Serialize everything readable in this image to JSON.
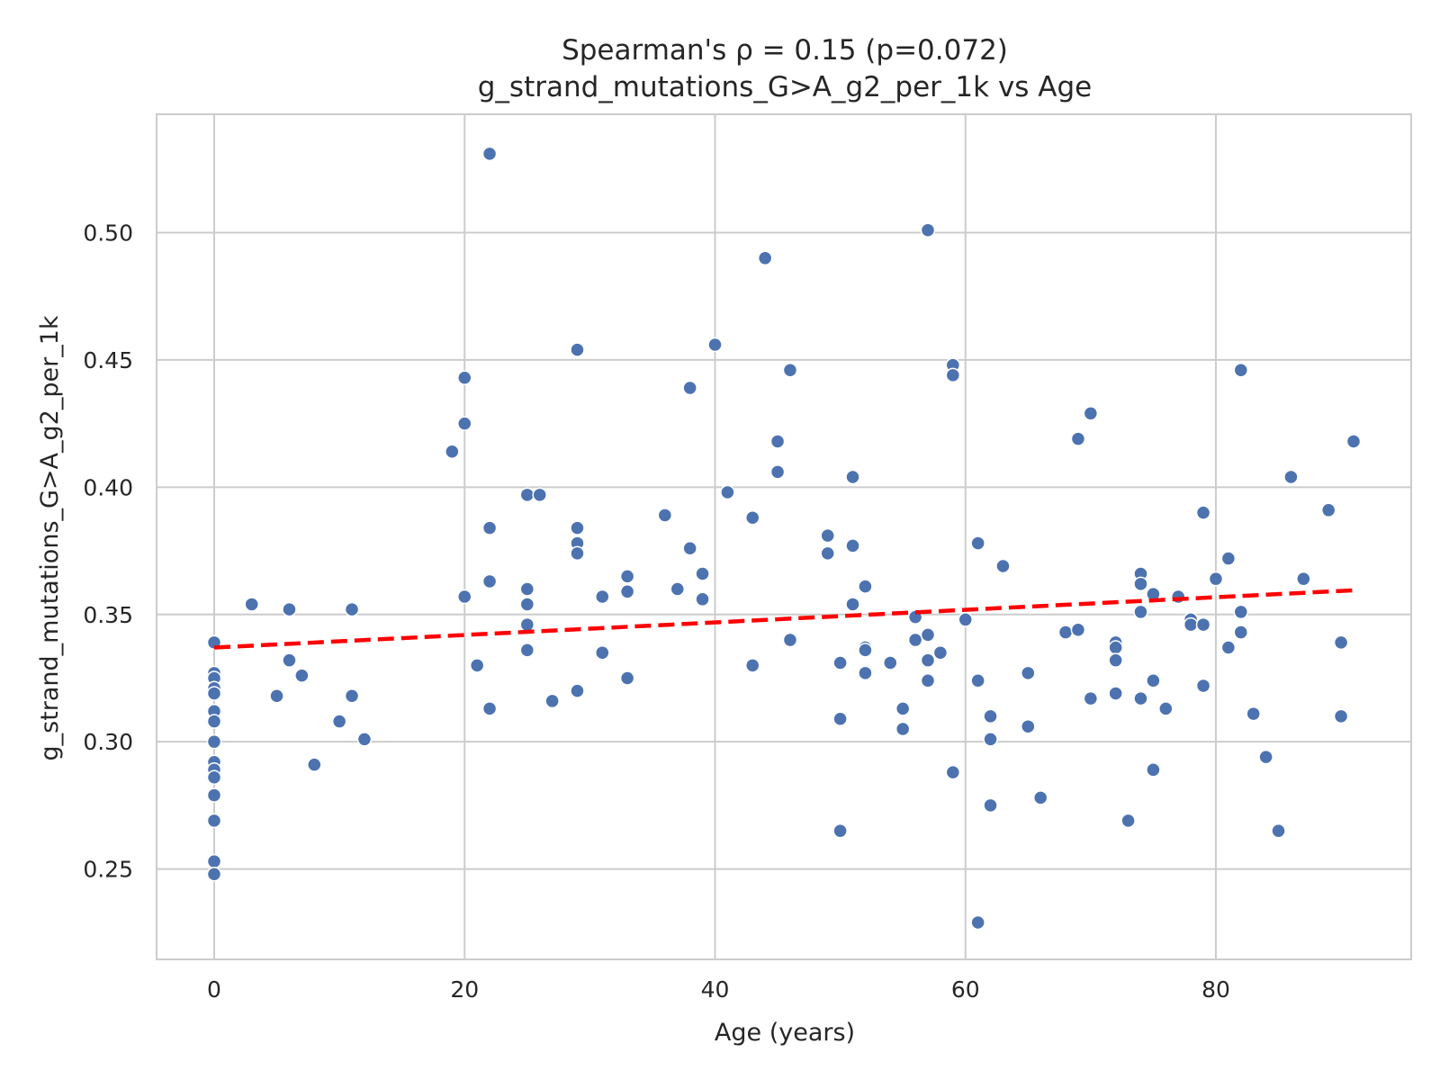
{
  "chart_data": {
    "type": "scatter",
    "title": "Spearman's ρ = 0.15 (p=0.072)",
    "subtitle": "g_strand_mutations_G>A_g2_per_1k vs Age",
    "xlabel": "Age (years)",
    "ylabel": "g_strand_mutations_G>A_g2_per_1k",
    "xlim": [
      -4.6,
      95.6
    ],
    "ylim": [
      0.2145,
      0.5465
    ],
    "xticks": [
      0,
      20,
      40,
      60,
      80
    ],
    "yticks": [
      0.25,
      0.3,
      0.35,
      0.4,
      0.45,
      0.5
    ],
    "ytick_labels": [
      "0.25",
      "0.30",
      "0.35",
      "0.40",
      "0.45",
      "0.50"
    ],
    "grid": true,
    "point_color": "#4c72b0",
    "trend_color": "#ff0000",
    "trend_line": {
      "style": "dashed",
      "x": [
        0,
        91
      ],
      "y": [
        0.337,
        0.3595
      ]
    },
    "points": [
      [
        0,
        0.339
      ],
      [
        0,
        0.327
      ],
      [
        0,
        0.325
      ],
      [
        0,
        0.321
      ],
      [
        0,
        0.319
      ],
      [
        0,
        0.312
      ],
      [
        0,
        0.308
      ],
      [
        0,
        0.3
      ],
      [
        0,
        0.292
      ],
      [
        0,
        0.289
      ],
      [
        0,
        0.286
      ],
      [
        0,
        0.279
      ],
      [
        0,
        0.269
      ],
      [
        0,
        0.253
      ],
      [
        0,
        0.248
      ],
      [
        3,
        0.354
      ],
      [
        5,
        0.318
      ],
      [
        6,
        0.352
      ],
      [
        6,
        0.332
      ],
      [
        7,
        0.326
      ],
      [
        8,
        0.291
      ],
      [
        10,
        0.308
      ],
      [
        11,
        0.352
      ],
      [
        11,
        0.318
      ],
      [
        12,
        0.301
      ],
      [
        19,
        0.414
      ],
      [
        20,
        0.443
      ],
      [
        20,
        0.425
      ],
      [
        20,
        0.357
      ],
      [
        21,
        0.33
      ],
      [
        22,
        0.531
      ],
      [
        22,
        0.384
      ],
      [
        22,
        0.363
      ],
      [
        22,
        0.313
      ],
      [
        25,
        0.397
      ],
      [
        25,
        0.36
      ],
      [
        25,
        0.354
      ],
      [
        25,
        0.346
      ],
      [
        25,
        0.336
      ],
      [
        26,
        0.397
      ],
      [
        27,
        0.316
      ],
      [
        29,
        0.454
      ],
      [
        29,
        0.384
      ],
      [
        29,
        0.378
      ],
      [
        29,
        0.374
      ],
      [
        29,
        0.32
      ],
      [
        31,
        0.357
      ],
      [
        31,
        0.335
      ],
      [
        33,
        0.365
      ],
      [
        33,
        0.359
      ],
      [
        33,
        0.325
      ],
      [
        36,
        0.389
      ],
      [
        37,
        0.36
      ],
      [
        38,
        0.439
      ],
      [
        38,
        0.376
      ],
      [
        39,
        0.366
      ],
      [
        39,
        0.356
      ],
      [
        40,
        0.456
      ],
      [
        41,
        0.398
      ],
      [
        43,
        0.388
      ],
      [
        43,
        0.33
      ],
      [
        44,
        0.49
      ],
      [
        45,
        0.418
      ],
      [
        45,
        0.406
      ],
      [
        46,
        0.446
      ],
      [
        46,
        0.34
      ],
      [
        49,
        0.381
      ],
      [
        49,
        0.374
      ],
      [
        50,
        0.331
      ],
      [
        50,
        0.309
      ],
      [
        50,
        0.265
      ],
      [
        51,
        0.404
      ],
      [
        51,
        0.377
      ],
      [
        51,
        0.354
      ],
      [
        52,
        0.361
      ],
      [
        52,
        0.337
      ],
      [
        52,
        0.336
      ],
      [
        52,
        0.327
      ],
      [
        54,
        0.331
      ],
      [
        55,
        0.313
      ],
      [
        55,
        0.305
      ],
      [
        56,
        0.349
      ],
      [
        56,
        0.34
      ],
      [
        57,
        0.501
      ],
      [
        57,
        0.342
      ],
      [
        57,
        0.332
      ],
      [
        57,
        0.324
      ],
      [
        58,
        0.335
      ],
      [
        59,
        0.448
      ],
      [
        59,
        0.444
      ],
      [
        59,
        0.288
      ],
      [
        60,
        0.348
      ],
      [
        61,
        0.378
      ],
      [
        61,
        0.324
      ],
      [
        61,
        0.229
      ],
      [
        62,
        0.31
      ],
      [
        62,
        0.301
      ],
      [
        62,
        0.275
      ],
      [
        63,
        0.369
      ],
      [
        65,
        0.327
      ],
      [
        65,
        0.306
      ],
      [
        66,
        0.278
      ],
      [
        68,
        0.343
      ],
      [
        69,
        0.419
      ],
      [
        69,
        0.344
      ],
      [
        70,
        0.429
      ],
      [
        70,
        0.317
      ],
      [
        72,
        0.339
      ],
      [
        72,
        0.337
      ],
      [
        72,
        0.332
      ],
      [
        72,
        0.319
      ],
      [
        73,
        0.269
      ],
      [
        74,
        0.366
      ],
      [
        74,
        0.362
      ],
      [
        74,
        0.351
      ],
      [
        74,
        0.317
      ],
      [
        75,
        0.358
      ],
      [
        75,
        0.324
      ],
      [
        75,
        0.289
      ],
      [
        76,
        0.313
      ],
      [
        77,
        0.357
      ],
      [
        78,
        0.348
      ],
      [
        78,
        0.346
      ],
      [
        79,
        0.39
      ],
      [
        79,
        0.346
      ],
      [
        79,
        0.322
      ],
      [
        80,
        0.364
      ],
      [
        81,
        0.372
      ],
      [
        81,
        0.337
      ],
      [
        82,
        0.446
      ],
      [
        82,
        0.351
      ],
      [
        82,
        0.343
      ],
      [
        83,
        0.311
      ],
      [
        84,
        0.294
      ],
      [
        85,
        0.265
      ],
      [
        86,
        0.404
      ],
      [
        87,
        0.364
      ],
      [
        89,
        0.391
      ],
      [
        90,
        0.339
      ],
      [
        90,
        0.31
      ],
      [
        91,
        0.418
      ]
    ]
  }
}
